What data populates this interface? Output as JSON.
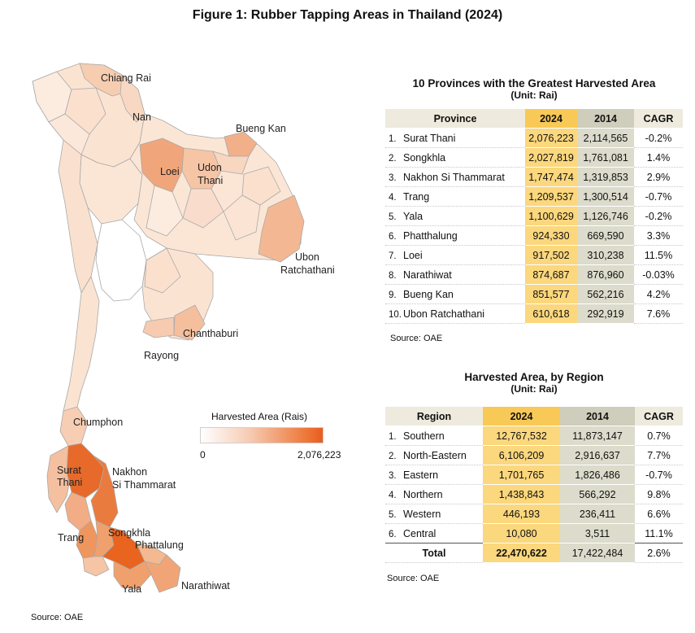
{
  "figure_title": "Figure 1: Rubber Tapping Areas in Thailand (2024)",
  "map": {
    "labels": {
      "chiang_rai": "Chiang Rai",
      "nan": "Nan",
      "bueng_kan": "Bueng Kan",
      "loei": "Loei",
      "udon": "Udon",
      "thani": "Thani",
      "ubon": "Ubon",
      "ratchathani": "Ratchathani",
      "chanthaburi": "Chanthaburi",
      "rayong": "Rayong",
      "chumphon": "Chumphon",
      "surat": "Surat",
      "thani2": "Thani",
      "nakhon": "Nakhon",
      "si_thammarat": "Si Thammarat",
      "trang": "Trang",
      "songkhla": "Songkhla",
      "phattalung": "Phattalung",
      "yala": "Yala",
      "narathiwat": "Narathiwat"
    },
    "source": "Source: OAE",
    "colors": {
      "low": "#fbe6d6",
      "mid": "#f4b48a",
      "high": "#e8641f",
      "border": "#a9a9a9"
    }
  },
  "legend": {
    "title": "Harvested Area (Rais)",
    "min": "0",
    "max": "2,076,223"
  },
  "provinces_table": {
    "title": "10 Provinces with the Greatest Harvested Area",
    "unit": "(Unit: Rai)",
    "headers": {
      "name": "Province",
      "y2024": "2024",
      "y2014": "2014",
      "cagr": "CAGR"
    },
    "rows": [
      {
        "n": "1.",
        "name": "Surat Thani",
        "y2024": "2,076,223",
        "y2014": "2,114,565",
        "cagr": "-0.2%"
      },
      {
        "n": "2.",
        "name": "Songkhla",
        "y2024": "2,027,819",
        "y2014": "1,761,081",
        "cagr": "1.4%"
      },
      {
        "n": "3.",
        "name": "Nakhon Si Thammarat",
        "y2024": "1,747,474",
        "y2014": "1,319,853",
        "cagr": "2.9%"
      },
      {
        "n": "4.",
        "name": "Trang",
        "y2024": "1,209,537",
        "y2014": "1,300,514",
        "cagr": "-0.7%"
      },
      {
        "n": "5.",
        "name": "Yala",
        "y2024": "1,100,629",
        "y2014": "1,126,746",
        "cagr": "-0.2%"
      },
      {
        "n": "6.",
        "name": "Phatthalung",
        "y2024": "924,330",
        "y2014": "669,590",
        "cagr": "3.3%"
      },
      {
        "n": "7.",
        "name": "Loei",
        "y2024": "917,502",
        "y2014": "310,238",
        "cagr": "11.5%"
      },
      {
        "n": "8.",
        "name": "Narathiwat",
        "y2024": "874,687",
        "y2014": "876,960",
        "cagr": "-0.03%"
      },
      {
        "n": "9.",
        "name": "Bueng Kan",
        "y2024": "851,577",
        "y2014": "562,216",
        "cagr": "4.2%"
      },
      {
        "n": "10.",
        "name": "Ubon Ratchathani",
        "y2024": "610,618",
        "y2014": "292,919",
        "cagr": "7.6%"
      }
    ],
    "source": "Source: OAE"
  },
  "region_table": {
    "title": "Harvested Area, by Region",
    "unit": "(Unit: Rai)",
    "headers": {
      "name": "Region",
      "y2024": "2024",
      "y2014": "2014",
      "cagr": "CAGR"
    },
    "rows": [
      {
        "n": "1.",
        "name": "Southern",
        "y2024": "12,767,532",
        "y2014": "11,873,147",
        "cagr": "0.7%"
      },
      {
        "n": "2.",
        "name": "North-Eastern",
        "y2024": "6,106,209",
        "y2014": "2,916,637",
        "cagr": "7.7%"
      },
      {
        "n": "3.",
        "name": "Eastern",
        "y2024": "1,701,765",
        "y2014": "1,826,486",
        "cagr": "-0.7%"
      },
      {
        "n": "4.",
        "name": "Northern",
        "y2024": "1,438,843",
        "y2014": "566,292",
        "cagr": "9.8%"
      },
      {
        "n": "5.",
        "name": "Western",
        "y2024": "446,193",
        "y2014": "236,411",
        "cagr": "6.6%"
      },
      {
        "n": "6.",
        "name": "Central",
        "y2024": "10,080",
        "y2014": "3,511",
        "cagr": "11.1%"
      }
    ],
    "total": {
      "name": "Total",
      "y2024": "22,470,622",
      "y2014": "17,422,484",
      "cagr": "2.6%"
    },
    "source": "Source: OAE"
  }
}
